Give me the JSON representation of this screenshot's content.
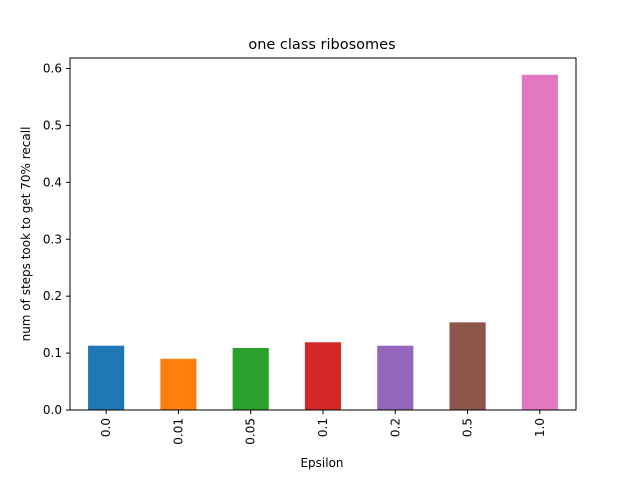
{
  "chart_data": {
    "type": "bar",
    "title": "one class ribosomes",
    "xlabel": "Epsilon",
    "ylabel": "num of steps took to get 70% recall",
    "categories": [
      "0.0",
      "0.01",
      "0.05",
      "0.1",
      "0.2",
      "0.5",
      "1.0"
    ],
    "values": [
      0.113,
      0.09,
      0.109,
      0.119,
      0.113,
      0.154,
      0.589
    ],
    "colors": [
      "#1f77b4",
      "#ff7f0e",
      "#2ca02c",
      "#d62728",
      "#9467bd",
      "#8c564b",
      "#e377c2"
    ],
    "ylim": [
      0,
      0.6185
    ],
    "yticks": [
      0.0,
      0.1,
      0.2,
      0.3,
      0.4,
      0.5,
      0.6
    ],
    "ytick_labels": [
      "0.0",
      "0.1",
      "0.2",
      "0.3",
      "0.4",
      "0.5",
      "0.6"
    ],
    "grid": false,
    "legend": false
  }
}
